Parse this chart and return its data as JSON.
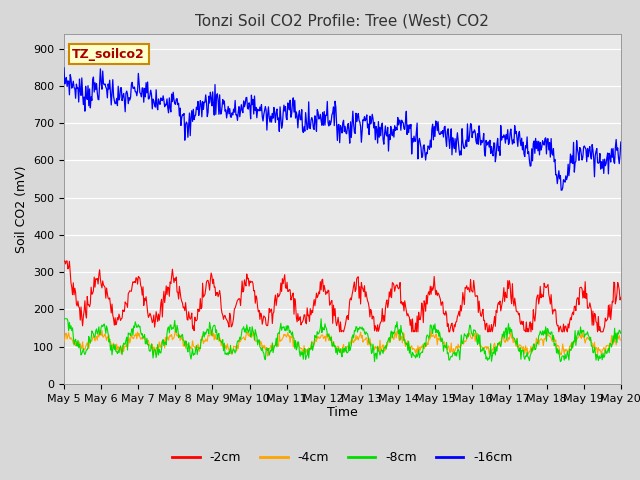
{
  "title": "Tonzi Soil CO2 Profile: Tree (West) CO2",
  "xlabel": "Time",
  "ylabel": "Soil CO2 (mV)",
  "label_box": "TZ_soilco2",
  "ylim": [
    0,
    940
  ],
  "yticks": [
    0,
    100,
    200,
    300,
    400,
    500,
    600,
    700,
    800,
    900
  ],
  "xtick_labels": [
    "May 5",
    "May 6",
    "May 7",
    "May 8",
    "May 9",
    "May 10",
    "May 11",
    "May 12",
    "May 13",
    "May 14",
    "May 15",
    "May 16",
    "May 17",
    "May 18",
    "May 19",
    "May 20"
  ],
  "series_colors": {
    "2cm": "#ff0000",
    "4cm": "#ffa500",
    "8cm": "#00dd00",
    "16cm": "#0000ff"
  },
  "legend_labels": [
    "-2cm",
    "-4cm",
    "-8cm",
    "-16cm"
  ],
  "fig_bg_color": "#d8d8d8",
  "plot_bg_color": "#e8e8e8",
  "grid_color": "#ffffff",
  "title_fontsize": 11,
  "axis_label_fontsize": 9,
  "tick_fontsize": 8,
  "n_points": 720,
  "days": 15
}
